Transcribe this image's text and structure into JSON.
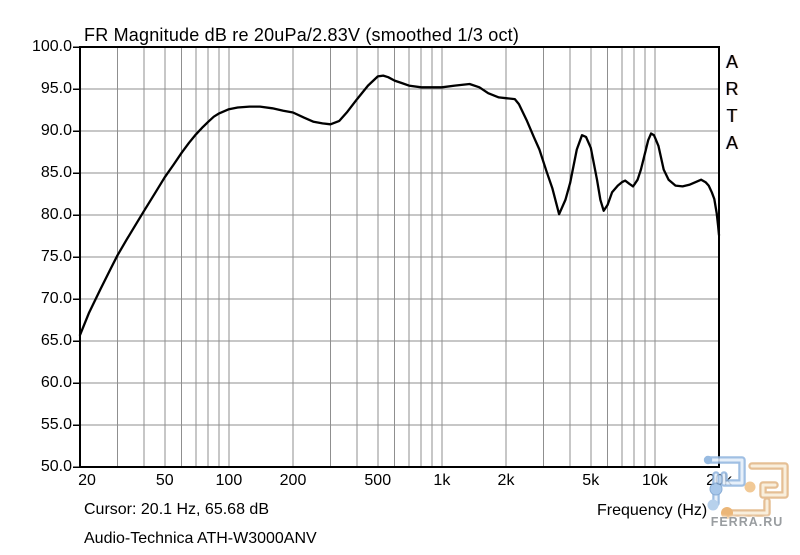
{
  "window": {
    "background": "#ffffff"
  },
  "chart_data": {
    "type": "line",
    "title": "FR Magnitude dB re 20uPa/2.83V (smoothed 1/3 oct)",
    "xlabel": "Frequency (Hz)",
    "x_scale": "log",
    "xlim": [
      20,
      20000
    ],
    "ylim": [
      50,
      100
    ],
    "grid": true,
    "y_ticks": {
      "values": [
        100,
        95,
        90,
        85,
        80,
        75,
        70,
        65,
        60,
        55,
        50
      ],
      "labels": [
        "100.0",
        "95.0",
        "90.0",
        "85.0",
        "80.0",
        "75.0",
        "70.0",
        "65.0",
        "60.0",
        "55.0",
        "50.0"
      ]
    },
    "x_ticks": {
      "values": [
        20,
        50,
        100,
        200,
        500,
        1000,
        2000,
        5000,
        10000,
        20000
      ],
      "labels": [
        "20",
        "50",
        "100",
        "200",
        "500",
        "1k",
        "2k",
        "5k",
        "10k",
        "20k"
      ]
    },
    "gridline_freqs": [
      30,
      40,
      50,
      60,
      70,
      80,
      90,
      100,
      200,
      300,
      400,
      500,
      600,
      700,
      800,
      900,
      1000,
      2000,
      3000,
      4000,
      5000,
      6000,
      7000,
      8000,
      9000,
      10000
    ],
    "gridline_dbs": [
      55,
      60,
      65,
      70,
      75,
      80,
      85,
      90,
      95
    ],
    "colors": {
      "curve": "#000000",
      "grid": "#8f8f8f",
      "border": "#000000",
      "background": "#ffffff"
    },
    "cursor": {
      "freq_hz": 20.1,
      "db": 65.68
    },
    "series": [
      {
        "name": "Audio-Technica ATH-W3000ANV",
        "points": [
          [
            20,
            65.7
          ],
          [
            22,
            68.3
          ],
          [
            25,
            71.2
          ],
          [
            28,
            73.7
          ],
          [
            30,
            75.2
          ],
          [
            33,
            77.0
          ],
          [
            36,
            78.6
          ],
          [
            40,
            80.5
          ],
          [
            45,
            82.6
          ],
          [
            50,
            84.5
          ],
          [
            55,
            86.0
          ],
          [
            60,
            87.4
          ],
          [
            65,
            88.6
          ],
          [
            70,
            89.6
          ],
          [
            75,
            90.4
          ],
          [
            80,
            91.1
          ],
          [
            85,
            91.7
          ],
          [
            90,
            92.1
          ],
          [
            100,
            92.6
          ],
          [
            110,
            92.8
          ],
          [
            125,
            92.9
          ],
          [
            140,
            92.9
          ],
          [
            160,
            92.7
          ],
          [
            180,
            92.4
          ],
          [
            200,
            92.2
          ],
          [
            225,
            91.6
          ],
          [
            250,
            91.1
          ],
          [
            275,
            90.9
          ],
          [
            300,
            90.8
          ],
          [
            330,
            91.2
          ],
          [
            360,
            92.3
          ],
          [
            400,
            93.8
          ],
          [
            450,
            95.4
          ],
          [
            500,
            96.5
          ],
          [
            530,
            96.6
          ],
          [
            560,
            96.4
          ],
          [
            600,
            96.0
          ],
          [
            650,
            95.7
          ],
          [
            700,
            95.4
          ],
          [
            800,
            95.2
          ],
          [
            900,
            95.2
          ],
          [
            1000,
            95.2
          ],
          [
            1150,
            95.4
          ],
          [
            1350,
            95.6
          ],
          [
            1500,
            95.2
          ],
          [
            1650,
            94.5
          ],
          [
            1850,
            94.0
          ],
          [
            2000,
            93.9
          ],
          [
            2200,
            93.8
          ],
          [
            2300,
            93.2
          ],
          [
            2500,
            91.3
          ],
          [
            2700,
            89.3
          ],
          [
            2870,
            87.8
          ],
          [
            3100,
            85.2
          ],
          [
            3300,
            83.2
          ],
          [
            3550,
            80.1
          ],
          [
            3800,
            81.8
          ],
          [
            4000,
            83.8
          ],
          [
            4300,
            87.8
          ],
          [
            4550,
            89.5
          ],
          [
            4750,
            89.3
          ],
          [
            5000,
            88.0
          ],
          [
            5350,
            84.2
          ],
          [
            5550,
            81.8
          ],
          [
            5750,
            80.5
          ],
          [
            6000,
            81.2
          ],
          [
            6300,
            82.7
          ],
          [
            6700,
            83.5
          ],
          [
            7000,
            83.9
          ],
          [
            7250,
            84.1
          ],
          [
            7600,
            83.7
          ],
          [
            7900,
            83.4
          ],
          [
            8300,
            84.2
          ],
          [
            8600,
            85.4
          ],
          [
            9000,
            87.4
          ],
          [
            9300,
            88.9
          ],
          [
            9600,
            89.7
          ],
          [
            9900,
            89.5
          ],
          [
            10400,
            88.2
          ],
          [
            11000,
            85.4
          ],
          [
            11600,
            84.2
          ],
          [
            12500,
            83.5
          ],
          [
            13500,
            83.4
          ],
          [
            14500,
            83.6
          ],
          [
            15500,
            83.9
          ],
          [
            16500,
            84.2
          ],
          [
            17300,
            83.9
          ],
          [
            17900,
            83.5
          ],
          [
            18500,
            82.7
          ],
          [
            19000,
            81.9
          ],
          [
            19500,
            80.2
          ],
          [
            19800,
            78.7
          ],
          [
            20000,
            77.6
          ]
        ]
      }
    ]
  },
  "side_branding": {
    "label": "ARTA"
  },
  "footer": {
    "cursor_readout": "Cursor: 20.1 Hz, 65.68 dB"
  },
  "watermark": {
    "brand": "FERRA.RU"
  }
}
